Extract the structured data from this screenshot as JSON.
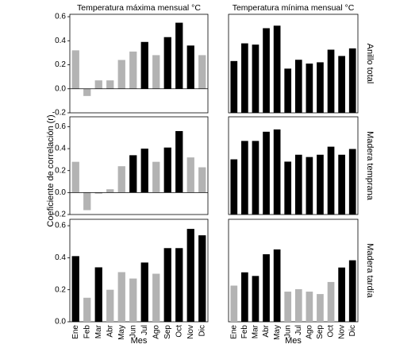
{
  "chart_data": [
    {
      "type": "bar",
      "title": "Temperatura máxima mensual °C",
      "values": [
        0.32,
        -0.06,
        0.07,
        0.07,
        0.24,
        0.31,
        0.39,
        0.28,
        0.43,
        0.55,
        0.36,
        0.28
      ],
      "colors": [
        "#b3b3b3",
        "#b3b3b3",
        "#b3b3b3",
        "#b3b3b3",
        "#b3b3b3",
        "#b3b3b3",
        "#000000",
        "#b3b3b3",
        "#000000",
        "#000000",
        "#000000",
        "#b3b3b3"
      ],
      "ylim": [
        -0.2,
        0.62
      ],
      "yticks": [
        -0.2,
        {
          "value": 0,
          "label": "0.0"
        },
        0.2,
        0.4,
        0.6
      ]
    },
    {
      "type": "bar",
      "title": "Temperatura mínima mensual °C",
      "row_label": "Anillo total",
      "values": [
        0.41,
        0.55,
        0.54,
        0.67,
        0.69,
        0.35,
        0.42,
        0.39,
        0.4,
        0.5,
        0.45,
        0.51
      ],
      "colors": [
        "#000000",
        "#000000",
        "#000000",
        "#000000",
        "#000000",
        "#000000",
        "#000000",
        "#000000",
        "#000000",
        "#000000",
        "#000000",
        "#000000"
      ],
      "ylim": [
        0,
        0.78
      ]
    },
    {
      "type": "bar",
      "ylabel": "Coeficiente de correlación (r)",
      "values": [
        0.28,
        -0.16,
        -0.01,
        0.03,
        0.24,
        0.34,
        0.4,
        0.28,
        0.41,
        0.56,
        0.32,
        0.23
      ],
      "colors": [
        "#b3b3b3",
        "#b3b3b3",
        "#b3b3b3",
        "#b3b3b3",
        "#b3b3b3",
        "#000000",
        "#000000",
        "#b3b3b3",
        "#000000",
        "#000000",
        "#b3b3b3",
        "#b3b3b3"
      ],
      "ylim": [
        -0.2,
        0.69
      ],
      "yticks": [
        -0.2,
        {
          "value": 0,
          "label": "0.0"
        },
        0.2,
        0.4,
        0.6
      ]
    },
    {
      "type": "bar",
      "row_label": "Madera temprana",
      "values": [
        0.48,
        0.64,
        0.64,
        0.72,
        0.74,
        0.46,
        0.52,
        0.5,
        0.52,
        0.59,
        0.52,
        0.57
      ],
      "colors": [
        "#000000",
        "#000000",
        "#000000",
        "#000000",
        "#000000",
        "#000000",
        "#000000",
        "#000000",
        "#000000",
        "#000000",
        "#000000",
        "#000000"
      ],
      "ylim": [
        0,
        0.85
      ]
    },
    {
      "type": "bar",
      "xlabel": "Mes",
      "categories": [
        "Ene",
        "Feb",
        "Mar",
        "Abr",
        "May",
        "Jun",
        "Jul",
        "Ago",
        "Sep",
        "Oct",
        "Nov",
        "Dic"
      ],
      "values": [
        0.41,
        0.15,
        0.34,
        0.2,
        0.31,
        0.27,
        0.37,
        0.3,
        0.46,
        0.46,
        0.58,
        0.54
      ],
      "colors": [
        "#000000",
        "#b3b3b3",
        "#000000",
        "#b3b3b3",
        "#b3b3b3",
        "#b3b3b3",
        "#000000",
        "#b3b3b3",
        "#000000",
        "#000000",
        "#000000",
        "#000000"
      ],
      "ylim": [
        0,
        0.64
      ],
      "yticks": [
        {
          "value": 0,
          "label": "0.0"
        },
        0.2,
        0.4,
        0.6
      ]
    },
    {
      "type": "bar",
      "xlabel": "Mes",
      "row_label": "Madera tardía",
      "categories": [
        "Ene",
        "Feb",
        "Mar",
        "Abr",
        "May",
        "Jun",
        "Jul",
        "Ago",
        "Sep",
        "Oct",
        "Nov",
        "Dic"
      ],
      "values": [
        0.3,
        0.41,
        0.38,
        0.56,
        0.6,
        0.25,
        0.27,
        0.25,
        0.23,
        0.33,
        0.45,
        0.51
      ],
      "colors": [
        "#b3b3b3",
        "#000000",
        "#000000",
        "#000000",
        "#000000",
        "#b3b3b3",
        "#b3b3b3",
        "#b3b3b3",
        "#b3b3b3",
        "#b3b3b3",
        "#000000",
        "#000000"
      ],
      "ylim": [
        0,
        0.85
      ]
    }
  ]
}
